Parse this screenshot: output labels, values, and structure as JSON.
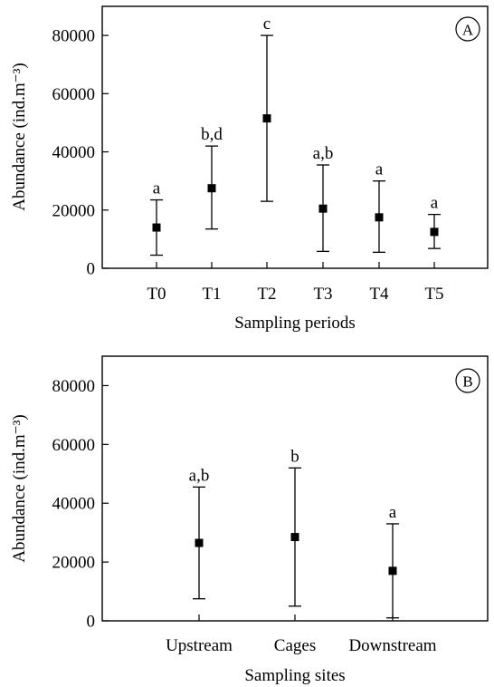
{
  "chart_data": [
    {
      "type": "scatter",
      "panel_label": "A",
      "xlabel": "Sampling periods",
      "ylabel": "Abundance (ind.m⁻³)",
      "ylim": [
        0,
        90000
      ],
      "yticks": [
        "0",
        "20000",
        "40000",
        "60000",
        "80000"
      ],
      "ytick_values": [
        0,
        20000,
        40000,
        60000,
        80000
      ],
      "categories": [
        "T0",
        "T1",
        "T2",
        "T3",
        "T4",
        "T5"
      ],
      "series": [
        {
          "mean": [
            14000,
            27500,
            51500,
            20500,
            17500,
            12500
          ],
          "lower": [
            4500,
            13500,
            23000,
            5800,
            5500,
            6800
          ],
          "upper": [
            23500,
            42000,
            80000,
            35500,
            30000,
            18500
          ],
          "significance": [
            "a",
            "b,d",
            "c",
            "a,b",
            "a",
            "a"
          ]
        }
      ],
      "grid": false
    },
    {
      "type": "scatter",
      "panel_label": "B",
      "xlabel": "Sampling sites",
      "ylabel": "Abundance (ind.m⁻³)",
      "ylim": [
        0,
        90000
      ],
      "yticks": [
        "0",
        "20000",
        "40000",
        "60000",
        "80000"
      ],
      "ytick_values": [
        0,
        20000,
        40000,
        60000,
        80000
      ],
      "categories": [
        "Upstream",
        "Cages",
        "Downstream"
      ],
      "series": [
        {
          "mean": [
            26500,
            28500,
            17000
          ],
          "lower": [
            7500,
            5000,
            1000
          ],
          "upper": [
            45500,
            52000,
            33000
          ],
          "significance": [
            "a,b",
            "b",
            "a"
          ]
        }
      ],
      "grid": false
    }
  ]
}
